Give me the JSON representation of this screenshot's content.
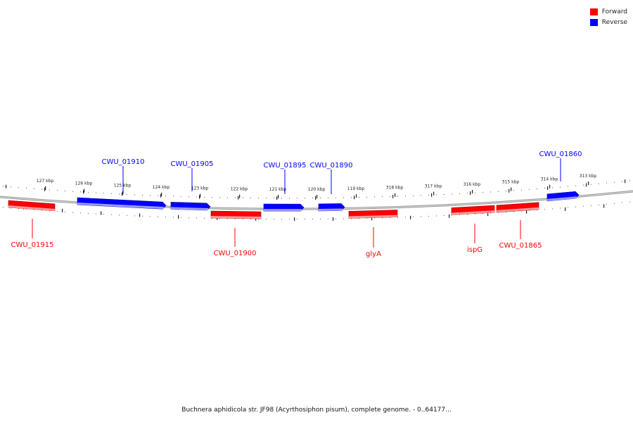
{
  "legend": {
    "forward_label": "Forward",
    "reverse_label": "Reverse",
    "forward_color": "#ff0000",
    "reverse_color": "#0000ff"
  },
  "caption": "Buchnera aphidicola str. JF98 (Acyrthosiphon pisum), complete genome. - 0..64177...",
  "tick_labels": [
    "127 kbp",
    "126 kbp",
    "125 kbp",
    "124 kbp",
    "123 kbp",
    "122 kbp",
    "121 kbp",
    "120 kbp",
    "119 kbp",
    "318 kbp",
    "317 kbp",
    "316 kbp",
    "315 kbp",
    "314 kbp",
    "313 kbp"
  ],
  "genes": [
    {
      "name": "CWU_01910",
      "strand": "reverse"
    },
    {
      "name": "CWU_01905",
      "strand": "reverse"
    },
    {
      "name": "CWU_01895",
      "strand": "reverse"
    },
    {
      "name": "CWU_01890",
      "strand": "reverse"
    },
    {
      "name": "CWU_01860",
      "strand": "reverse"
    },
    {
      "name": "CWU_01915",
      "strand": "forward"
    },
    {
      "name": "CWU_01900",
      "strand": "forward"
    },
    {
      "name": "glyA",
      "strand": "forward"
    },
    {
      "name": "ispG",
      "strand": "forward"
    },
    {
      "name": "CWU_01865",
      "strand": "forward"
    }
  ]
}
